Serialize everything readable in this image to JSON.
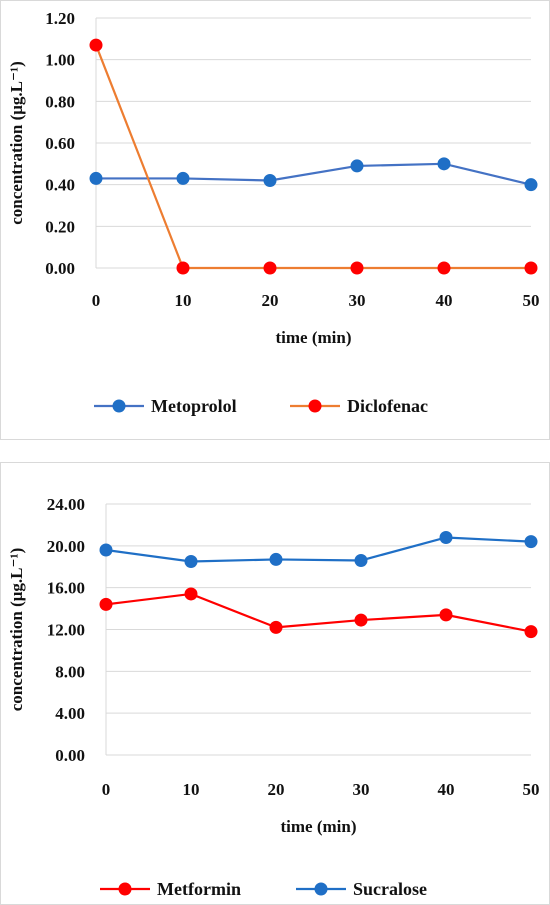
{
  "chart_data": [
    {
      "type": "line",
      "title": "",
      "xlabel": "time (min)",
      "ylabel": "concentration (μg.L⁻¹)",
      "x": [
        0,
        10,
        20,
        30,
        40,
        50
      ],
      "xlim": [
        0,
        50
      ],
      "ylim": [
        0,
        1.2
      ],
      "yticks": [
        0,
        0.2,
        0.4,
        0.6,
        0.8,
        1.0,
        1.2
      ],
      "ytick_labels": [
        "0.00",
        "0.20",
        "0.40",
        "0.60",
        "0.80",
        "1.00",
        "1.20"
      ],
      "xtick_labels": [
        "0",
        "10",
        "20",
        "30",
        "40",
        "50"
      ],
      "grid": "horizontal",
      "legend_position": "bottom",
      "series": [
        {
          "name": "Metoprolol",
          "line_color": "#4472C4",
          "marker_color": "#1F6FC6",
          "values": [
            0.43,
            0.43,
            0.42,
            0.49,
            0.5,
            0.4
          ]
        },
        {
          "name": "Diclofenac",
          "line_color": "#ED7D31",
          "marker_color": "#FF0000",
          "values": [
            1.07,
            0.0,
            0.0,
            0.0,
            0.0,
            0.0
          ]
        }
      ]
    },
    {
      "type": "line",
      "title": "",
      "xlabel": "time (min)",
      "ylabel": "concentration (μg.L⁻¹)",
      "x": [
        0,
        10,
        20,
        30,
        40,
        50
      ],
      "xlim": [
        0,
        50
      ],
      "ylim": [
        0,
        24
      ],
      "yticks": [
        0,
        4,
        8,
        12,
        16,
        20,
        24
      ],
      "ytick_labels": [
        "0.00",
        "4.00",
        "8.00",
        "12.00",
        "16.00",
        "20.00",
        "24.00"
      ],
      "xtick_labels": [
        "0",
        "10",
        "20",
        "30",
        "40",
        "50"
      ],
      "grid": "horizontal",
      "legend_position": "bottom",
      "series": [
        {
          "name": "Metformin",
          "line_color": "#FF0000",
          "marker_color": "#FF0000",
          "values": [
            14.4,
            15.4,
            12.2,
            12.9,
            13.4,
            11.8
          ]
        },
        {
          "name": "Sucralose",
          "line_color": "#1F6FC6",
          "marker_color": "#1F6FC6",
          "values": [
            19.6,
            18.5,
            18.7,
            18.6,
            20.8,
            20.4
          ]
        }
      ]
    }
  ]
}
